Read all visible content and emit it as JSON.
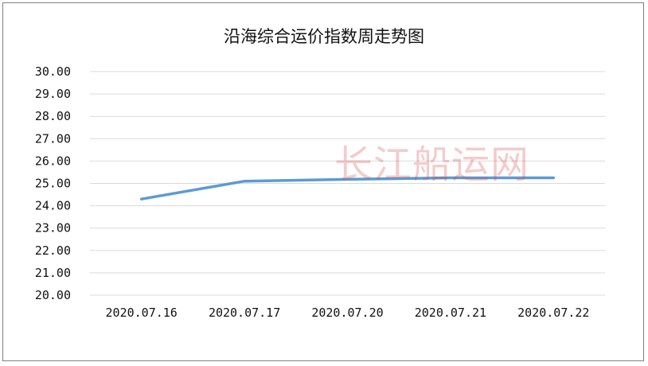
{
  "chart_data": {
    "type": "line",
    "title": "沿海综合运价指数周走势图",
    "categories": [
      "2020.07.16",
      "2020.07.17",
      "2020.07.20",
      "2020.07.21",
      "2020.07.22"
    ],
    "y_tick_labels": [
      "30.00",
      "29.00",
      "28.00",
      "27.00",
      "26.00",
      "25.00",
      "24.00",
      "23.00",
      "22.00",
      "21.00",
      "20.00"
    ],
    "series": [
      {
        "values": [
          24.3,
          25.1,
          25.18,
          25.25,
          25.25
        ]
      }
    ],
    "ylim": [
      20,
      30
    ],
    "y_step": 1,
    "grid": true,
    "legend": "none",
    "xlabel": "",
    "ylabel": "",
    "line_color": "#5b9bd5",
    "grid_color": "#d9d9d9"
  },
  "watermark": "长江船运网"
}
